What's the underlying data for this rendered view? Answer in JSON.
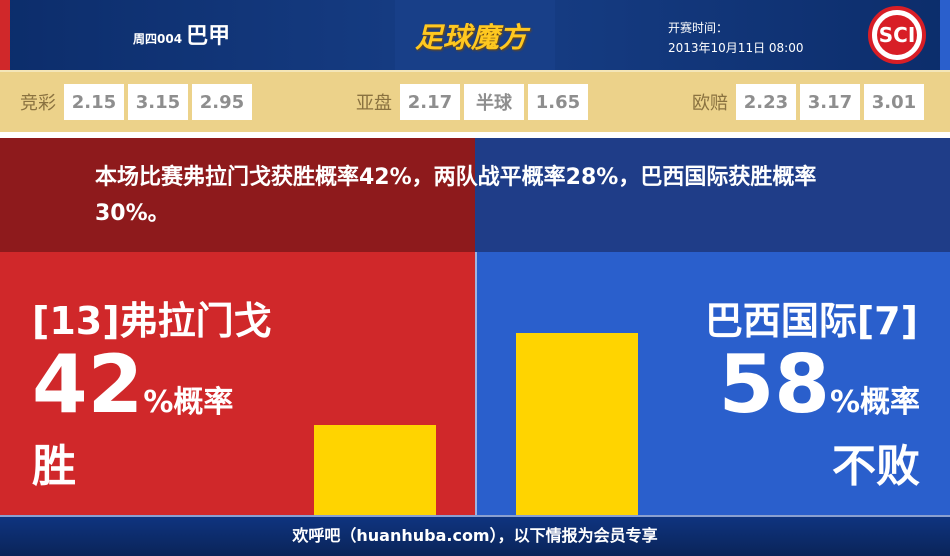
{
  "header": {
    "match_code": "周四004",
    "league": "巴甲",
    "brand": "足球魔方",
    "time_label": "开赛时间：",
    "time_value": "2013年10月11日 08:00",
    "badge_icon": "sc-internacional-crest"
  },
  "odds": [
    {
      "label": "竞彩",
      "values": [
        "2.15",
        "3.15",
        "2.95"
      ]
    },
    {
      "label": "亚盘",
      "values": [
        "2.17",
        "半球",
        "1.65"
      ]
    },
    {
      "label": "欧赔",
      "values": [
        "2.23",
        "3.17",
        "3.01"
      ]
    }
  ],
  "summary": "本场比赛弗拉门戈获胜概率42%，两队战平概率28%，巴西国际获胜概率30%。",
  "home": {
    "team": "[13]弗拉门戈",
    "percent": "42",
    "suffix": "%概率",
    "result": "胜",
    "bar_value": 42,
    "color": "#d0282a"
  },
  "away": {
    "team": "巴西国际[7]",
    "percent": "58",
    "suffix": "%概率",
    "result": "不败",
    "bar_value": 58,
    "color": "#2a5fcc"
  },
  "bar_color": "#ffd400",
  "footer": "欢呼吧（huanhuba.com），以下情报为会员专享"
}
